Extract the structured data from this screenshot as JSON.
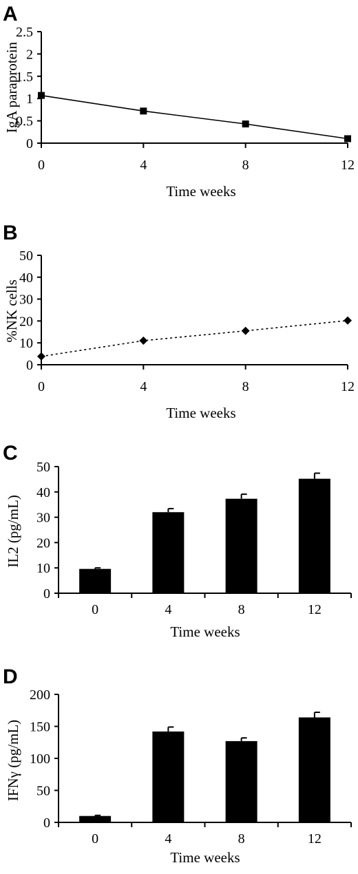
{
  "panels": [
    "A",
    "B",
    "C",
    "D"
  ],
  "chart_data": [
    {
      "panel": "A",
      "type": "line",
      "xlabel": "Time weeks",
      "ylabel": "IgA paraprotein",
      "x": [
        0,
        4,
        8,
        12
      ],
      "ylim": [
        0,
        2.5
      ],
      "yticks": [
        "0",
        "0.5",
        "1",
        "1.5",
        "2",
        "2.5"
      ],
      "xticks": [
        "0",
        "4",
        "8",
        "12"
      ],
      "series": [
        {
          "values": [
            1.07,
            0.72,
            0.43,
            0.1
          ],
          "marker": "square",
          "line": "solid"
        }
      ],
      "grid": false
    },
    {
      "panel": "B",
      "type": "line",
      "xlabel": "Time weeks",
      "ylabel": "%NK cells",
      "x": [
        0,
        4,
        8,
        12
      ],
      "ylim": [
        0,
        50
      ],
      "yticks": [
        "0",
        "10",
        "20",
        "30",
        "40",
        "50"
      ],
      "xticks": [
        "0",
        "4",
        "8",
        "12"
      ],
      "series": [
        {
          "values": [
            3.8,
            11,
            15.5,
            20.2
          ],
          "marker": "diamond",
          "line": "dotted"
        }
      ],
      "grid": false
    },
    {
      "panel": "C",
      "type": "bar",
      "xlabel": "Time weeks",
      "ylabel": "IL2 (pg/mL)",
      "categories": [
        "0",
        "4",
        "8",
        "12"
      ],
      "ylim": [
        0,
        50
      ],
      "yticks": [
        "0",
        "10",
        "20",
        "30",
        "40",
        "50"
      ],
      "series": [
        {
          "values": [
            9.6,
            32,
            37.3,
            45.2
          ],
          "errors": [
            0.4,
            1.4,
            1.8,
            2.2
          ]
        }
      ],
      "grid": false
    },
    {
      "panel": "D",
      "type": "bar",
      "xlabel": "Time weeks",
      "ylabel": "IFNγ (pg/mL)",
      "categories": [
        "0",
        "4",
        "8",
        "12"
      ],
      "ylim": [
        0,
        200
      ],
      "yticks": [
        "0",
        "50",
        "100",
        "150",
        "200"
      ],
      "series": [
        {
          "values": [
            10,
            142,
            127,
            164
          ],
          "errors": [
            1,
            7,
            5,
            8
          ]
        }
      ],
      "grid": false
    }
  ]
}
